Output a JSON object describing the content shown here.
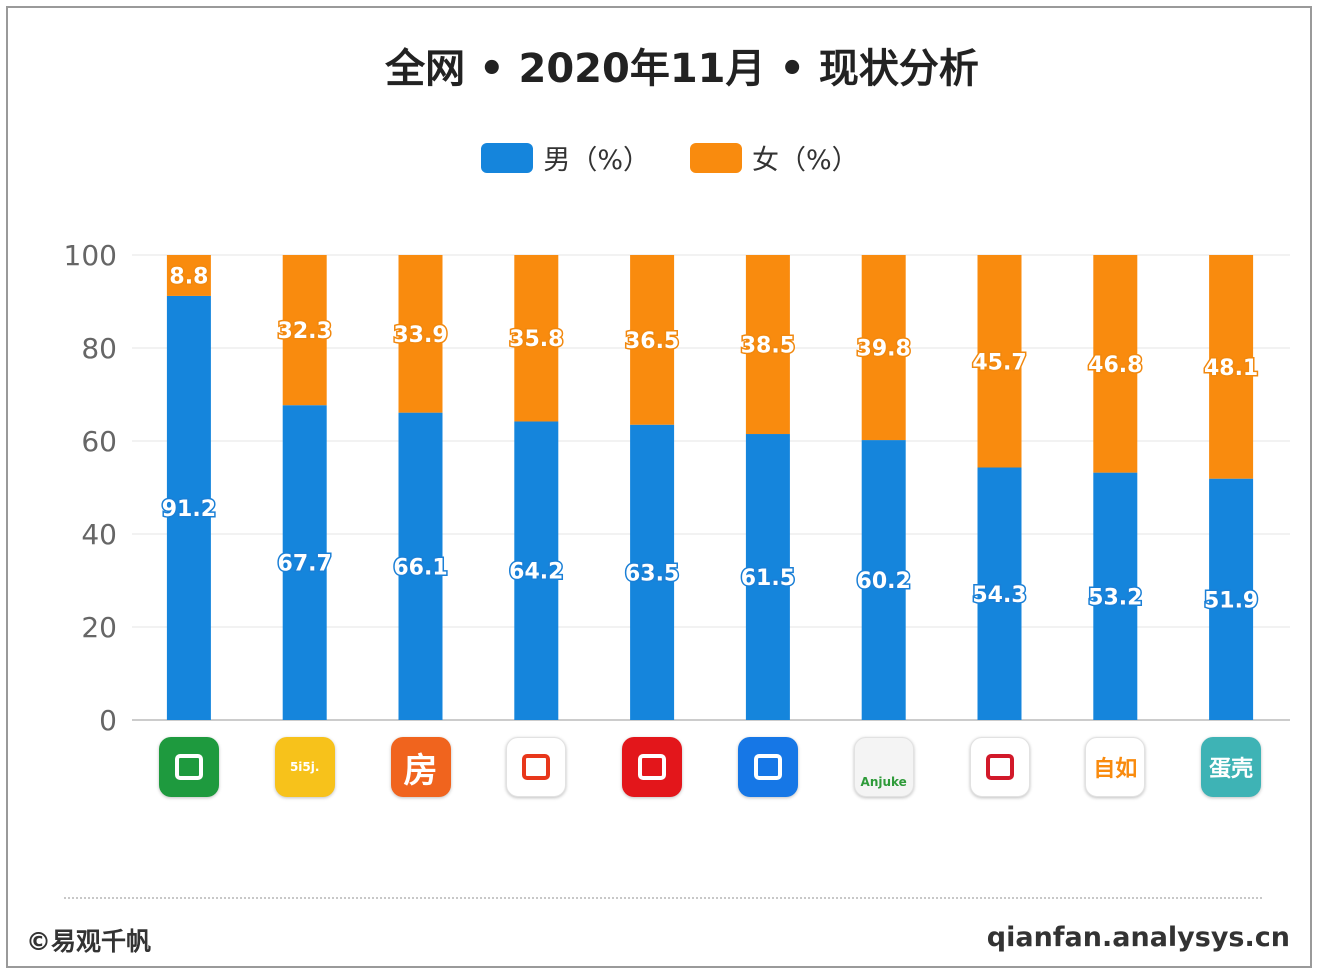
{
  "title": "全网 • 2020年11月 • 现状分析",
  "legend": {
    "male": "男（%）",
    "female": "女（%）"
  },
  "colors": {
    "male": "#1585dc",
    "female": "#f98b0e",
    "grid": "#eeeeee",
    "axis": "#cccccc"
  },
  "footer": {
    "left": "©易观千帆",
    "right": "qianfan.analysys.cn"
  },
  "icons": [
    {
      "name": "green-house-icon",
      "text": "",
      "bg": "#1e9a3e",
      "fg": "#ffffff"
    },
    {
      "name": "5i5j-icon",
      "text": "5i5j.",
      "bg": "#f7c21b",
      "fg": "#ffffff"
    },
    {
      "name": "fang-icon",
      "text": "房",
      "bg": "#f0641e",
      "fg": "#ffffff"
    },
    {
      "name": "red-book-icon",
      "text": "",
      "bg": "#ffffff",
      "fg": "#e8371b"
    },
    {
      "name": "red-location-house-icon",
      "text": "",
      "bg": "#e3161b",
      "fg": "#ffffff"
    },
    {
      "name": "blue-house-icon",
      "text": "",
      "bg": "#1677e6",
      "fg": "#ffffff"
    },
    {
      "name": "anjuke-icon",
      "text": "Anjuke",
      "bg": "#f4f4f4",
      "fg": "#2f9b3a"
    },
    {
      "name": "red-q-icon",
      "text": "",
      "bg": "#ffffff",
      "fg": "#d2192a"
    },
    {
      "name": "ziroom-icon",
      "text": "自如",
      "bg": "#ffffff",
      "fg": "#f98b0e"
    },
    {
      "name": "dankeapartment-icon",
      "text": "蛋壳",
      "bg": "#3eb3b5",
      "fg": "#ffffff"
    }
  ],
  "chart_data": {
    "type": "bar",
    "stacked": true,
    "title": "全网 • 2020年11月 • 现状分析",
    "xlabel": "",
    "ylabel": "",
    "ylim": [
      0,
      100
    ],
    "yticks": [
      0,
      20,
      40,
      60,
      80,
      100
    ],
    "grid": true,
    "legend_position": "top-center",
    "series": [
      {
        "name": "男（%）",
        "values": [
          91.2,
          67.7,
          66.1,
          64.2,
          63.5,
          61.5,
          60.2,
          54.3,
          53.2,
          51.9
        ]
      },
      {
        "name": "女（%）",
        "values": [
          8.8,
          32.3,
          33.9,
          35.8,
          36.5,
          38.5,
          39.8,
          45.7,
          46.8,
          48.1
        ]
      }
    ]
  }
}
